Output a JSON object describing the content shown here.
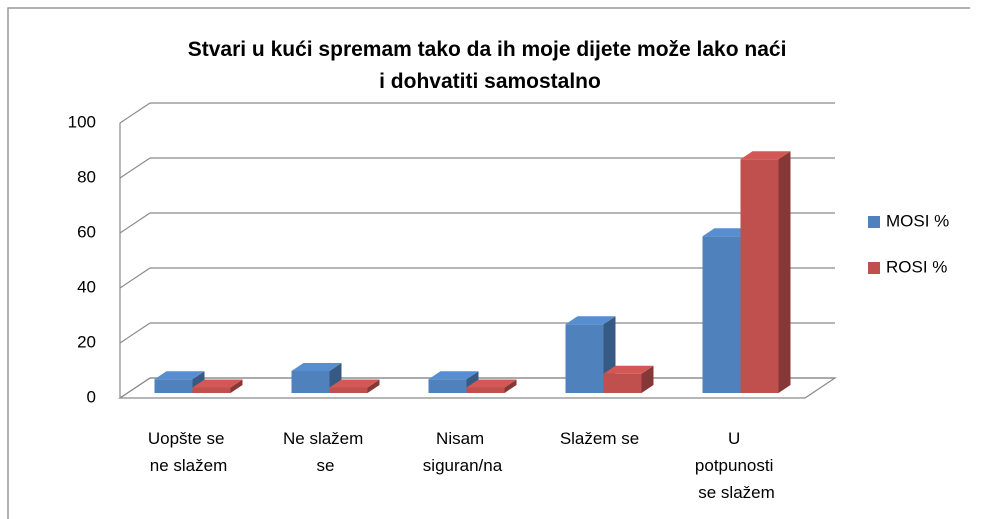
{
  "chart_data": {
    "type": "bar3d",
    "title": "Stvari u kući spremam tako da ih moje dijete može lako naći i dohvatiti samostalno",
    "categories": [
      "Uopšte se ne slažem",
      "Ne slažem se",
      "Nisam siguran/na",
      "Slažem se",
      "U potpunosti se slažem"
    ],
    "series": [
      {
        "name": "MOSI %",
        "color": "#4f81bd",
        "values": [
          5,
          8,
          5,
          25,
          57
        ]
      },
      {
        "name": "ROSI %",
        "color": "#c0504d",
        "values": [
          2,
          2,
          2,
          7,
          85
        ]
      }
    ],
    "ylim": [
      0,
      100
    ],
    "yticks": [
      0,
      20,
      40,
      60,
      80,
      100
    ],
    "grid": true,
    "legend": "right"
  }
}
